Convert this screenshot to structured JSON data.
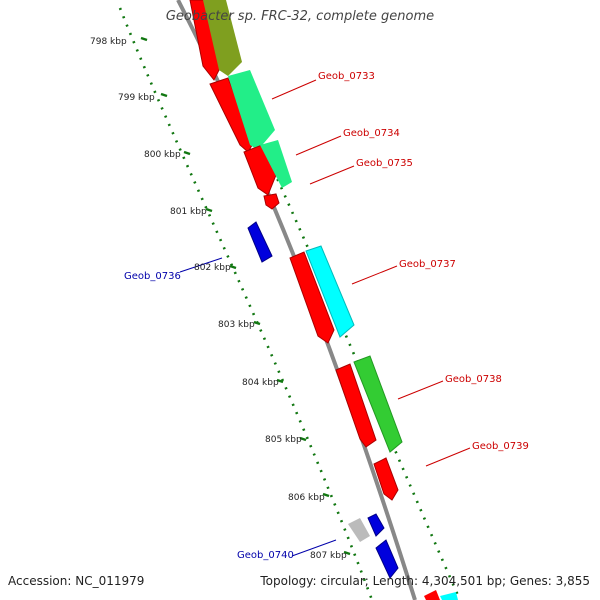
{
  "title": "Geobacter sp. FRC-32, complete genome",
  "accession_text": "Accession: NC_011979",
  "stats_text": "Topology: circular; Length: 4,304,501 bp; Genes: 3,855",
  "kbp_labels": [
    "798 kbp",
    "799 kbp",
    "800 kbp",
    "801 kbp",
    "802 kbp",
    "803 kbp",
    "804 kbp",
    "805 kbp",
    "806 kbp",
    "807 kbp"
  ],
  "gene_labels": [
    "Geob_0733",
    "Geob_0734",
    "Geob_0735",
    "Geob_0736",
    "Geob_0737",
    "Geob_0738",
    "Geob_0739",
    "Geob_0740"
  ],
  "colors": {
    "forward_gene": "#ff0000",
    "reverse_gene": "#0000dd",
    "forward_label": "#cc0000",
    "reverse_label": "#0000aa",
    "backbone": "#888888",
    "scale": "#117711"
  }
}
